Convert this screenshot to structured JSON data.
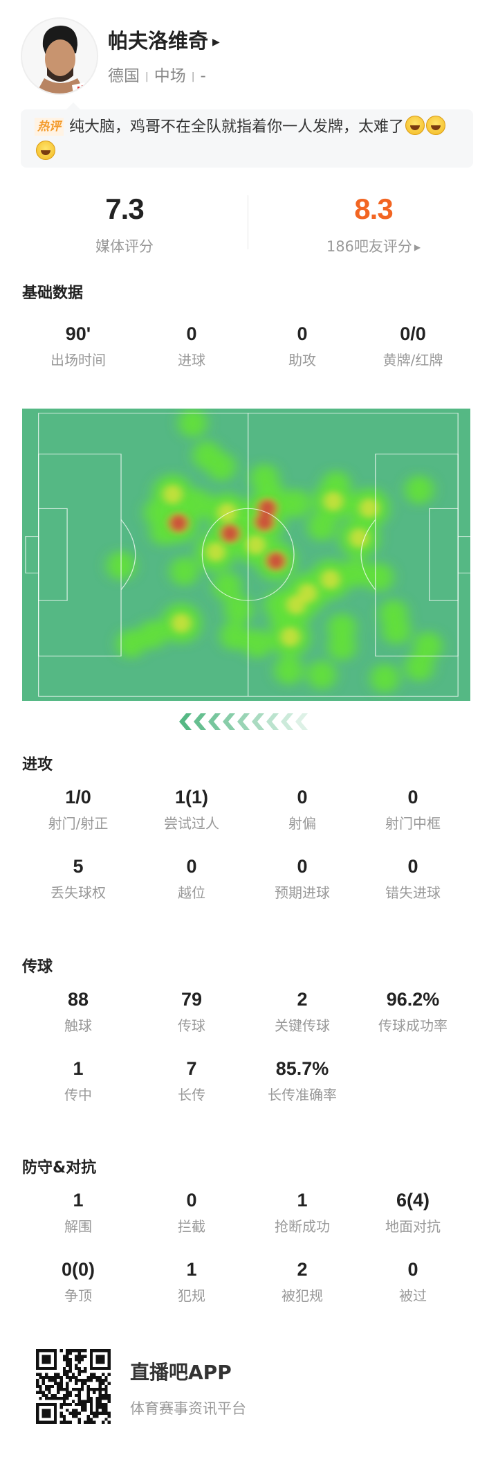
{
  "player": {
    "name": "帕夫洛维奇",
    "nationality": "德国",
    "position": "中场",
    "number": "-"
  },
  "hot_comment": {
    "badge": "热评",
    "text": "纯大脑，鸡哥不在全队就指着你一人发牌，太难了",
    "emoji": [
      "laugh-cry-emoji",
      "laugh-cry-emoji",
      "laugh-cry-emoji"
    ]
  },
  "ratings": {
    "media": {
      "value": "7.3",
      "label": "媒体评分"
    },
    "fans": {
      "value": "8.3",
      "label": "186吧友评分",
      "color": "#f26522"
    }
  },
  "sections": [
    {
      "title": "基础数据",
      "rows": [
        [
          {
            "value": "90'",
            "label": "出场时间"
          },
          {
            "value": "0",
            "label": "进球"
          },
          {
            "value": "0",
            "label": "助攻"
          },
          {
            "value": "0/0",
            "label": "黄牌/红牌"
          }
        ]
      ]
    },
    {
      "title": "进攻",
      "rows": [
        [
          {
            "value": "1/0",
            "label": "射门/射正"
          },
          {
            "value": "1(1)",
            "label": "尝试过人"
          },
          {
            "value": "0",
            "label": "射偏"
          },
          {
            "value": "0",
            "label": "射门中框"
          }
        ],
        [
          {
            "value": "5",
            "label": "丢失球权"
          },
          {
            "value": "0",
            "label": "越位"
          },
          {
            "value": "0",
            "label": "预期进球"
          },
          {
            "value": "0",
            "label": "错失进球"
          }
        ]
      ]
    },
    {
      "title": "传球",
      "rows": [
        [
          {
            "value": "88",
            "label": "触球"
          },
          {
            "value": "79",
            "label": "传球"
          },
          {
            "value": "2",
            "label": "关键传球"
          },
          {
            "value": "96.2%",
            "label": "传球成功率"
          }
        ],
        [
          {
            "value": "1",
            "label": "传中"
          },
          {
            "value": "7",
            "label": "长传"
          },
          {
            "value": "85.7%",
            "label": "长传准确率"
          }
        ]
      ]
    },
    {
      "title": "防守&对抗",
      "rows": [
        [
          {
            "value": "1",
            "label": "解围"
          },
          {
            "value": "0",
            "label": "拦截"
          },
          {
            "value": "1",
            "label": "抢断成功"
          },
          {
            "value": "6(4)",
            "label": "地面对抗"
          }
        ],
        [
          {
            "value": "0(0)",
            "label": "争顶"
          },
          {
            "value": "1",
            "label": "犯规"
          },
          {
            "value": "2",
            "label": "被犯规"
          },
          {
            "value": "0",
            "label": "被过"
          }
        ]
      ]
    }
  ],
  "heatmap": {
    "pitch_color": "#55b884",
    "attack_direction": "left"
  },
  "footer": {
    "app_name": "直播吧APP",
    "tagline": "体育赛事资讯平台"
  }
}
